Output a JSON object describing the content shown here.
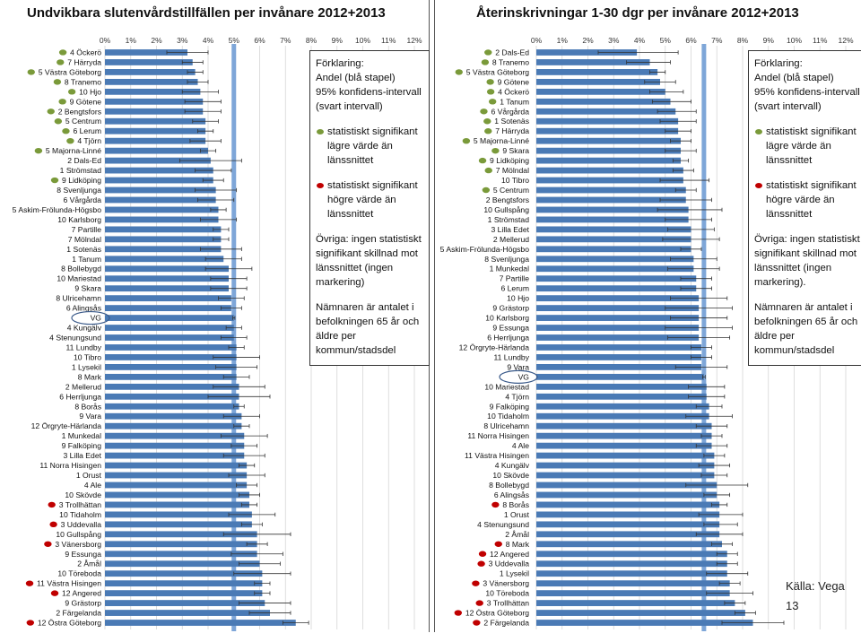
{
  "legend": {
    "heading": "Förklaring:",
    "bar_text": "Andel (blå stapel)",
    "ci_text": "95% konfidens-intervall (svart intervall)",
    "low_text": "statistiskt signifikant lägre värde än länssnittet",
    "high_text": "statistiskt signifikant högre värde än länssnittet",
    "other_text_left": "Övriga: ingen statistiskt signifikant skillnad mot länssnittet (ingen markering)",
    "other_text_right": "Övriga: ingen statistiskt signifikant skillnad mot länssnittet (ingen markering).",
    "denominator_text": "Nämnaren är antalet i befolkningen 65 år och äldre per kommun/stadsdel"
  },
  "source": "Källa: Vega",
  "page_number": "13",
  "colors": {
    "bar": "#4a7ab5",
    "average_line": "#7ea6d8",
    "low": "#7a9a3a",
    "high": "#c00000",
    "error": "#333333"
  },
  "chart_data": [
    {
      "type": "bar",
      "orientation": "horizontal",
      "title": "Undvikbara slutenvårdstillfällen per invånare 2012+2013",
      "xlabel": "",
      "ylabel": "",
      "xlim": [
        0,
        12
      ],
      "x_ticks": [
        "0%",
        "1%",
        "2%",
        "3%",
        "4%",
        "5%",
        "6%",
        "7%",
        "8%",
        "9%",
        "10%",
        "11%",
        "12%"
      ],
      "grid": true,
      "average_line": 5.0,
      "highlight_circle": "VG",
      "categories": [
        "4 Öckerö",
        "7 Härryda",
        "5 Västra Göteborg",
        "8 Tranemo",
        "10 Hjo",
        "9 Götene",
        "2 Bengtsfors",
        "5 Centrum",
        "6 Lerum",
        "4 Tjörn",
        "5 Majorna-Linné",
        "2 Dals-Ed",
        "1 Strömstad",
        "9 Lidköping",
        "8 Svenljunga",
        "6 Vårgårda",
        "5 Askim-Frölunda-Högsbo",
        "10 Karlsborg",
        "7 Partille",
        "7 Mölndal",
        "1 Sotenäs",
        "1 Tanum",
        "8 Bollebygd",
        "10 Mariestad",
        "9 Skara",
        "8 Ulricehamn",
        "6 Alingsås",
        "VG",
        "4 Kungälv",
        "4 Stenungsund",
        "11 Lundby",
        "10 Tibro",
        "1 Lysekil",
        "8 Mark",
        "2 Mellerud",
        "6 Herrljunga",
        "8 Borås",
        "9 Vara",
        "12 Örgryte-Härlanda",
        "1 Munkedal",
        "9 Falköping",
        "3 Lilla Edet",
        "11 Norra Hisingen",
        "1 Orust",
        "4 Ale",
        "10 Skövde",
        "3 Trollhättan",
        "10 Tidaholm",
        "3 Uddevalla",
        "10 Gullspång",
        "3 Vänersborg",
        "9 Essunga",
        "2 Åmål",
        "10 Töreboda",
        "11 Västra Hisingen",
        "12 Angered",
        "9 Grästorp",
        "2 Färgelanda",
        "12 Östra Göteborg"
      ],
      "values": [
        3.2,
        3.4,
        3.5,
        3.6,
        3.7,
        3.8,
        3.8,
        3.9,
        3.9,
        3.9,
        4.0,
        4.1,
        4.2,
        4.2,
        4.3,
        4.3,
        4.4,
        4.4,
        4.5,
        4.5,
        4.5,
        4.6,
        4.8,
        4.8,
        4.8,
        4.9,
        4.9,
        5.0,
        5.0,
        5.0,
        5.1,
        5.1,
        5.1,
        5.1,
        5.2,
        5.2,
        5.2,
        5.3,
        5.3,
        5.4,
        5.4,
        5.4,
        5.5,
        5.5,
        5.5,
        5.6,
        5.6,
        5.7,
        5.7,
        5.9,
        5.9,
        5.9,
        6.0,
        6.1,
        6.1,
        6.1,
        6.2,
        6.4,
        7.4
      ],
      "ci_low": [
        2.4,
        3.0,
        3.2,
        3.2,
        3.0,
        3.1,
        3.1,
        3.4,
        3.6,
        3.3,
        3.7,
        2.9,
        3.5,
        3.8,
        3.5,
        3.6,
        4.1,
        3.7,
        4.2,
        4.2,
        3.7,
        3.9,
        3.9,
        4.1,
        4.1,
        4.4,
        4.5,
        4.96,
        4.7,
        4.5,
        4.8,
        4.2,
        4.3,
        4.6,
        4.2,
        4.0,
        5.0,
        4.6,
        5.0,
        4.5,
        4.9,
        4.6,
        5.2,
        4.8,
        5.1,
        5.2,
        5.3,
        4.8,
        5.3,
        4.6,
        5.5,
        4.9,
        5.2,
        5.0,
        5.8,
        5.8,
        5.2,
        5.6,
        6.9
      ],
      "ci_high": [
        4.0,
        3.8,
        3.8,
        4.0,
        4.4,
        4.5,
        4.5,
        4.4,
        4.2,
        4.5,
        4.3,
        5.3,
        4.9,
        4.6,
        5.1,
        5.0,
        4.7,
        5.1,
        4.8,
        4.8,
        5.3,
        5.3,
        5.7,
        5.5,
        5.5,
        5.4,
        5.3,
        5.04,
        5.3,
        5.5,
        5.4,
        6.0,
        5.9,
        5.6,
        6.2,
        6.4,
        5.4,
        6.0,
        5.6,
        6.3,
        5.9,
        6.2,
        5.8,
        6.2,
        5.9,
        6.0,
        5.9,
        6.6,
        6.1,
        7.2,
        6.3,
        6.9,
        6.8,
        7.2,
        6.4,
        6.4,
        7.2,
        7.2,
        7.9
      ],
      "marker": [
        "low",
        "low",
        "low",
        "low",
        "low",
        "low",
        "low",
        "low",
        "low",
        "low",
        "low",
        "",
        "",
        "low",
        "",
        "",
        "",
        "",
        "",
        "",
        "",
        "",
        "",
        "",
        "",
        "",
        "",
        "",
        "",
        "",
        "",
        "",
        "",
        "",
        "",
        "",
        "",
        "",
        "",
        "",
        "",
        "",
        "",
        "",
        "",
        "",
        "high",
        "",
        "high",
        "",
        "high",
        "",
        "",
        "",
        "high",
        "high",
        "",
        "",
        "high"
      ]
    },
    {
      "type": "bar",
      "orientation": "horizontal",
      "title": "Återinskrivningar 1-30 dgr per invånare 2012+2013",
      "xlabel": "",
      "ylabel": "",
      "xlim": [
        0,
        12
      ],
      "x_ticks": [
        "0%",
        "1%",
        "2%",
        "3%",
        "4%",
        "5%",
        "6%",
        "7%",
        "8%",
        "9%",
        "10%",
        "11%",
        "12%"
      ],
      "grid": true,
      "average_line": 6.5,
      "highlight_circle": "VG",
      "categories": [
        "2 Dals-Ed",
        "8 Tranemo",
        "5 Västra Göteborg",
        "9 Götene",
        "4 Öckerö",
        "1 Tanum",
        "6 Vårgårda",
        "1 Sotenäs",
        "7 Härryda",
        "5 Majorna-Linné",
        "9 Skara",
        "9 Lidköping",
        "7 Mölndal",
        "10 Tibro",
        "5 Centrum",
        "2 Bengtsfors",
        "10 Gullspång",
        "1 Strömstad",
        "3 Lilla Edet",
        "2 Mellerud",
        "5 Askim-Frölunda-Högsbo",
        "8 Svenljunga",
        "1 Munkedal",
        "7 Partille",
        "6 Lerum",
        "10 Hjo",
        "9 Grästorp",
        "10 Karlsborg",
        "9 Essunga",
        "6 Herrljunga",
        "12 Örgryte-Härlanda",
        "11 Lundby",
        "9 Vara",
        "VG",
        "10 Mariestad",
        "4 Tjörn",
        "9 Falköping",
        "10 Tidaholm",
        "8 Ulricehamn",
        "11 Norra Hisingen",
        "4 Ale",
        "11 Västra Hisingen",
        "4 Kungälv",
        "10 Skövde",
        "8 Bollebygd",
        "6 Alingsås",
        "8 Borås",
        "1 Orust",
        "4 Stenungsund",
        "2 Åmål",
        "8 Mark",
        "12 Angered",
        "3 Uddevalla",
        "1 Lysekil",
        "3 Vänersborg",
        "10 Töreboda",
        "3 Trollhättan",
        "12 Östra Göteborg",
        "2 Färgelanda"
      ],
      "values": [
        3.9,
        4.4,
        4.7,
        4.8,
        5.0,
        5.2,
        5.4,
        5.5,
        5.5,
        5.6,
        5.6,
        5.6,
        5.7,
        5.7,
        5.8,
        5.8,
        5.9,
        5.9,
        6.0,
        6.0,
        6.0,
        6.1,
        6.1,
        6.2,
        6.2,
        6.3,
        6.3,
        6.3,
        6.3,
        6.3,
        6.4,
        6.4,
        6.4,
        6.5,
        6.6,
        6.6,
        6.7,
        6.7,
        6.8,
        6.8,
        6.8,
        6.9,
        6.9,
        6.9,
        7.0,
        7.0,
        7.1,
        7.1,
        7.1,
        7.1,
        7.2,
        7.4,
        7.4,
        7.4,
        7.5,
        7.5,
        7.7,
        8.1,
        8.4
      ],
      "ci_low": [
        2.4,
        3.5,
        4.4,
        4.2,
        4.4,
        4.5,
        4.7,
        4.8,
        5.0,
        5.2,
        5.0,
        5.3,
        5.3,
        4.8,
        5.4,
        4.8,
        4.7,
        5.0,
        5.1,
        4.9,
        5.6,
        5.2,
        5.1,
        5.6,
        5.6,
        5.2,
        5.0,
        5.2,
        5.0,
        5.1,
        6.0,
        6.0,
        5.4,
        6.45,
        5.9,
        5.9,
        6.2,
        5.8,
        6.2,
        6.4,
        6.2,
        6.5,
        6.3,
        6.4,
        5.8,
        6.5,
        6.8,
        6.3,
        6.5,
        6.2,
        6.8,
        7.0,
        7.0,
        6.6,
        7.1,
        6.6,
        7.3,
        7.7,
        7.2
      ],
      "ci_high": [
        5.5,
        5.2,
        5.0,
        5.4,
        5.7,
        6.0,
        6.2,
        6.2,
        6.0,
        6.0,
        6.2,
        5.9,
        6.1,
        6.7,
        6.2,
        6.8,
        7.2,
        6.8,
        6.9,
        7.1,
        6.4,
        7.0,
        7.1,
        6.8,
        6.8,
        7.4,
        7.6,
        7.4,
        7.6,
        7.5,
        6.8,
        6.8,
        7.4,
        6.55,
        7.3,
        7.3,
        7.2,
        7.6,
        7.4,
        7.2,
        7.4,
        7.3,
        7.5,
        7.4,
        8.2,
        7.5,
        7.4,
        8.0,
        7.8,
        8.0,
        7.6,
        7.8,
        7.8,
        8.2,
        7.9,
        8.4,
        8.1,
        8.5,
        9.6
      ],
      "marker": [
        "low",
        "low",
        "low",
        "low",
        "low",
        "low",
        "low",
        "low",
        "low",
        "low",
        "low",
        "low",
        "low",
        "",
        "low",
        "",
        "",
        "",
        "",
        "",
        "",
        "",
        "",
        "",
        "",
        "",
        "",
        "",
        "",
        "",
        "",
        "",
        "",
        "",
        "",
        "",
        "",
        "",
        "",
        "",
        "",
        "",
        "",
        "",
        "",
        "",
        "high",
        "",
        "",
        "",
        "high",
        "high",
        "high",
        "",
        "high",
        "",
        "high",
        "high",
        "high"
      ]
    }
  ]
}
